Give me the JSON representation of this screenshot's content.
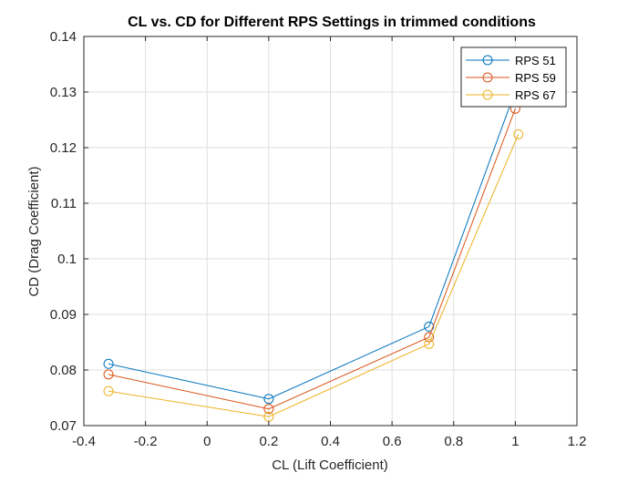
{
  "chart_data": {
    "type": "line",
    "title": "CL vs. CD for Different RPS Settings in trimmed conditions",
    "xlabel": "CL (Lift Coefficient)",
    "ylabel": "CD (Drag Coefficient)",
    "xlim": [
      -0.4,
      1.2
    ],
    "ylim": [
      0.07,
      0.14
    ],
    "xticks": [
      -0.4,
      -0.2,
      0,
      0.2,
      0.4,
      0.6,
      0.8,
      1,
      1.2
    ],
    "xtick_labels": [
      "-0.4",
      "-0.2",
      "0",
      "0.2",
      "0.4",
      "0.6",
      "0.8",
      "1",
      "1.2"
    ],
    "yticks": [
      0.07,
      0.08,
      0.09,
      0.1,
      0.11,
      0.12,
      0.13,
      0.14
    ],
    "ytick_labels": [
      "0.07",
      "0.08",
      "0.09",
      "0.1",
      "0.11",
      "0.12",
      "0.13",
      "0.14"
    ],
    "grid": true,
    "legend_position": "top-right",
    "marker": "circle",
    "series": [
      {
        "name": "RPS 51",
        "color": "#0072BD",
        "points": [
          [
            -0.32,
            0.0811
          ],
          [
            0.2,
            0.0748
          ],
          [
            0.72,
            0.0878
          ],
          [
            1.0,
            0.1302
          ]
        ]
      },
      {
        "name": "RPS 59",
        "color": "#D95319",
        "points": [
          [
            -0.32,
            0.0792
          ],
          [
            0.2,
            0.073
          ],
          [
            0.72,
            0.0859
          ],
          [
            1.0,
            0.127
          ]
        ]
      },
      {
        "name": "RPS 67",
        "color": "#EDB120",
        "points": [
          [
            -0.32,
            0.0762
          ],
          [
            0.2,
            0.0716
          ],
          [
            0.72,
            0.0847
          ],
          [
            1.01,
            0.1224
          ]
        ]
      }
    ]
  }
}
